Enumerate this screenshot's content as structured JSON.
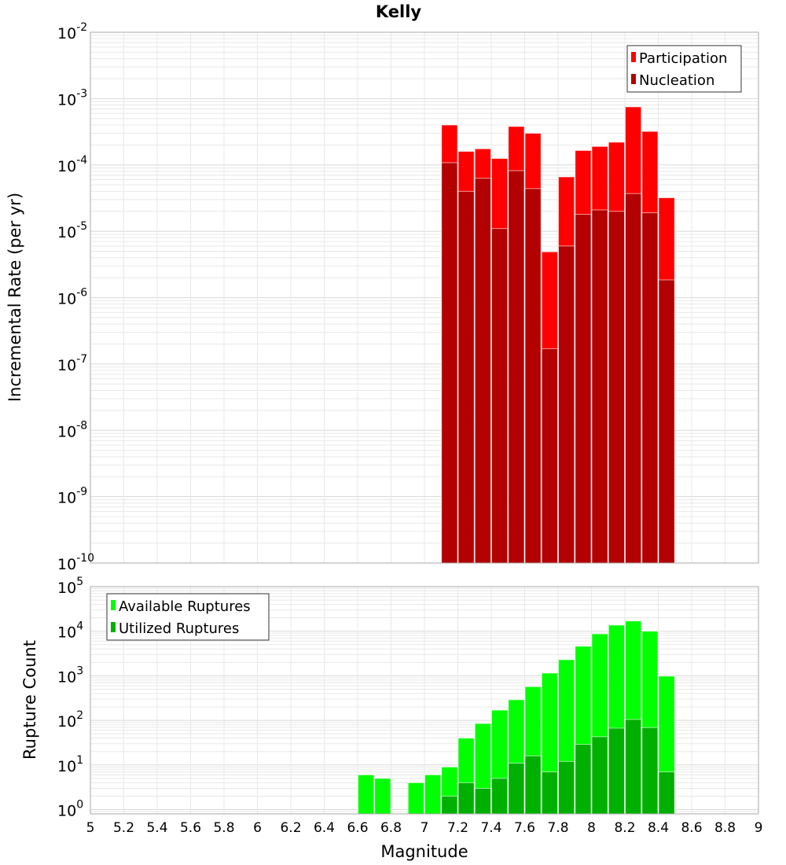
{
  "chart_data": [
    {
      "type": "bar",
      "title": "Kelly",
      "xlabel": "",
      "ylabel": "Incremental Rate (per yr)",
      "yscale": "log",
      "ylim": [
        1e-10,
        0.01
      ],
      "xlim": [
        5,
        9
      ],
      "y_tick_exponents": [
        "-2",
        "-3",
        "-4",
        "-5",
        "-6",
        "-7",
        "-8",
        "-9",
        "-10"
      ],
      "legend_position": "top-right",
      "grid": true,
      "x": [
        7.15,
        7.25,
        7.35,
        7.45,
        7.55,
        7.65,
        7.75,
        7.85,
        7.95,
        8.05,
        8.15,
        8.25,
        8.35,
        8.45
      ],
      "series": [
        {
          "name": "Participation",
          "color": "#ff0000",
          "values": [
            0.0004,
            0.00016,
            0.000175,
            0.000125,
            0.00038,
            0.0003,
            4.9e-06,
            6.6e-05,
            0.000165,
            0.00019,
            0.00022,
            0.00075,
            0.00032,
            3.2e-05
          ]
        },
        {
          "name": "Nucleation",
          "color": "#b30000",
          "values": [
            0.000108,
            4e-05,
            6.3e-05,
            1.1e-05,
            8.2e-05,
            4.4e-05,
            1.7e-07,
            6e-06,
            1.8e-05,
            2.1e-05,
            2e-05,
            3.7e-05,
            1.9e-05,
            1.85e-06
          ]
        }
      ]
    },
    {
      "type": "bar",
      "title": "",
      "xlabel": "Magnitude",
      "ylabel": "Rupture Count",
      "yscale": "log",
      "ylim": [
        0.8,
        100000.0
      ],
      "xlim": [
        5,
        9
      ],
      "y_tick_exponents": [
        "5",
        "4",
        "3",
        "2",
        "1",
        "0"
      ],
      "x_ticks": [
        "5",
        "5.2",
        "5.4",
        "5.6",
        "5.8",
        "6",
        "6.2",
        "6.4",
        "6.6",
        "6.8",
        "7",
        "7.2",
        "7.4",
        "7.6",
        "7.8",
        "8",
        "8.2",
        "8.4",
        "8.6",
        "8.8",
        "9"
      ],
      "legend_position": "top-left",
      "grid": true,
      "x": [
        6.65,
        6.75,
        6.95,
        7.05,
        7.15,
        7.25,
        7.35,
        7.45,
        7.55,
        7.65,
        7.75,
        7.85,
        7.95,
        8.05,
        8.15,
        8.25,
        8.35,
        8.45
      ],
      "series": [
        {
          "name": "Available Ruptures",
          "color": "#00ff00",
          "values": [
            6,
            5,
            4,
            6,
            9,
            40,
            85,
            170,
            290,
            570,
            1150,
            2300,
            4600,
            8700,
            13700,
            17000,
            10000,
            980
          ]
        },
        {
          "name": "Utilized Ruptures",
          "color": "#00b000",
          "values": [
            0,
            0,
            0,
            0,
            2,
            4,
            3,
            5,
            11,
            16,
            7,
            12,
            29,
            43,
            67,
            105,
            69,
            7
          ]
        }
      ]
    }
  ]
}
